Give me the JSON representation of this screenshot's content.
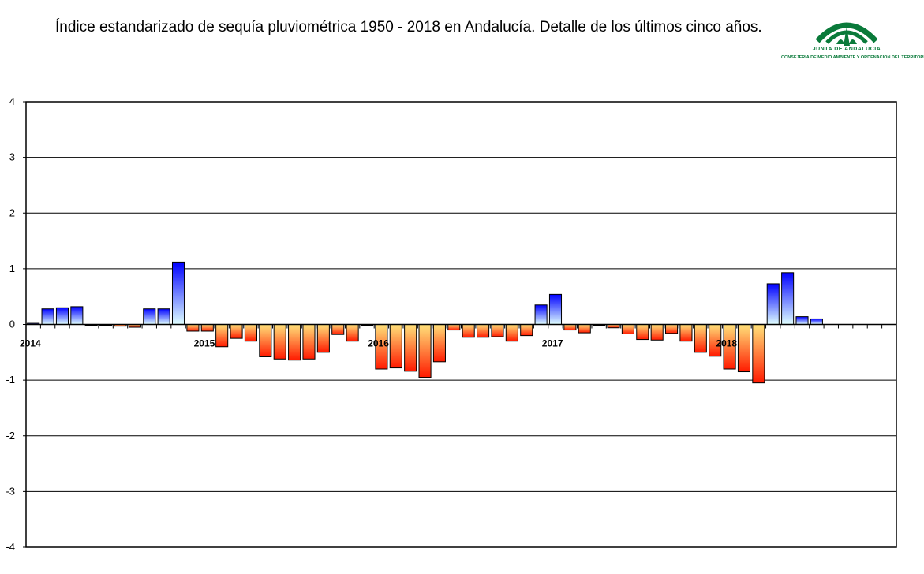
{
  "title": "Índice estandarizado de sequía pluviométrica 1950 - 2018 en Andalucía. Detalle de los últimos cinco años.",
  "logo": {
    "name": "JUNTA DE ANDALUCIA",
    "subtitle": "CONSEJERIA DE MEDIO AMBIENTE Y ORDENACION DEL TERRITORIO",
    "color": "#0a7a3a"
  },
  "chart_data": {
    "type": "bar",
    "title": "Índice estandarizado de sequía pluviométrica 1950 - 2018 en Andalucía. Detalle de los últimos cinco años.",
    "xlabel": "",
    "ylabel": "",
    "ylim": [
      -4,
      4
    ],
    "yticks": [
      4,
      3,
      2,
      1,
      0,
      -1,
      -2,
      -3,
      -4
    ],
    "grid": true,
    "legend": "none",
    "year_labels": [
      {
        "label": "2014",
        "index": 0
      },
      {
        "label": "2015",
        "index": 12
      },
      {
        "label": "2016",
        "index": 24
      },
      {
        "label": "2017",
        "index": 36
      },
      {
        "label": "2018",
        "index": 48
      }
    ],
    "n_slots": 60,
    "positive_gradient": [
      "#0000ff",
      "#e0ffff"
    ],
    "negative_gradient": [
      "#ffe27a",
      "#ff1a00"
    ],
    "values": [
      0.02,
      0.28,
      0.3,
      0.32,
      0.0,
      0.0,
      -0.03,
      -0.05,
      0.28,
      0.28,
      1.12,
      -0.12,
      -0.12,
      -0.4,
      -0.25,
      -0.3,
      -0.58,
      -0.62,
      -0.64,
      -0.62,
      -0.5,
      -0.18,
      -0.3,
      0.0,
      -0.8,
      -0.78,
      -0.84,
      -0.95,
      -0.67,
      -0.1,
      -0.23,
      -0.23,
      -0.22,
      -0.3,
      -0.2,
      0.35,
      0.54,
      -0.1,
      -0.15,
      0.0,
      -0.06,
      -0.17,
      -0.27,
      -0.28,
      -0.16,
      -0.3,
      -0.5,
      -0.57,
      -0.8,
      -0.85,
      -1.05,
      0.73,
      0.93,
      0.14,
      0.1,
      null,
      null,
      null,
      null,
      null
    ]
  }
}
